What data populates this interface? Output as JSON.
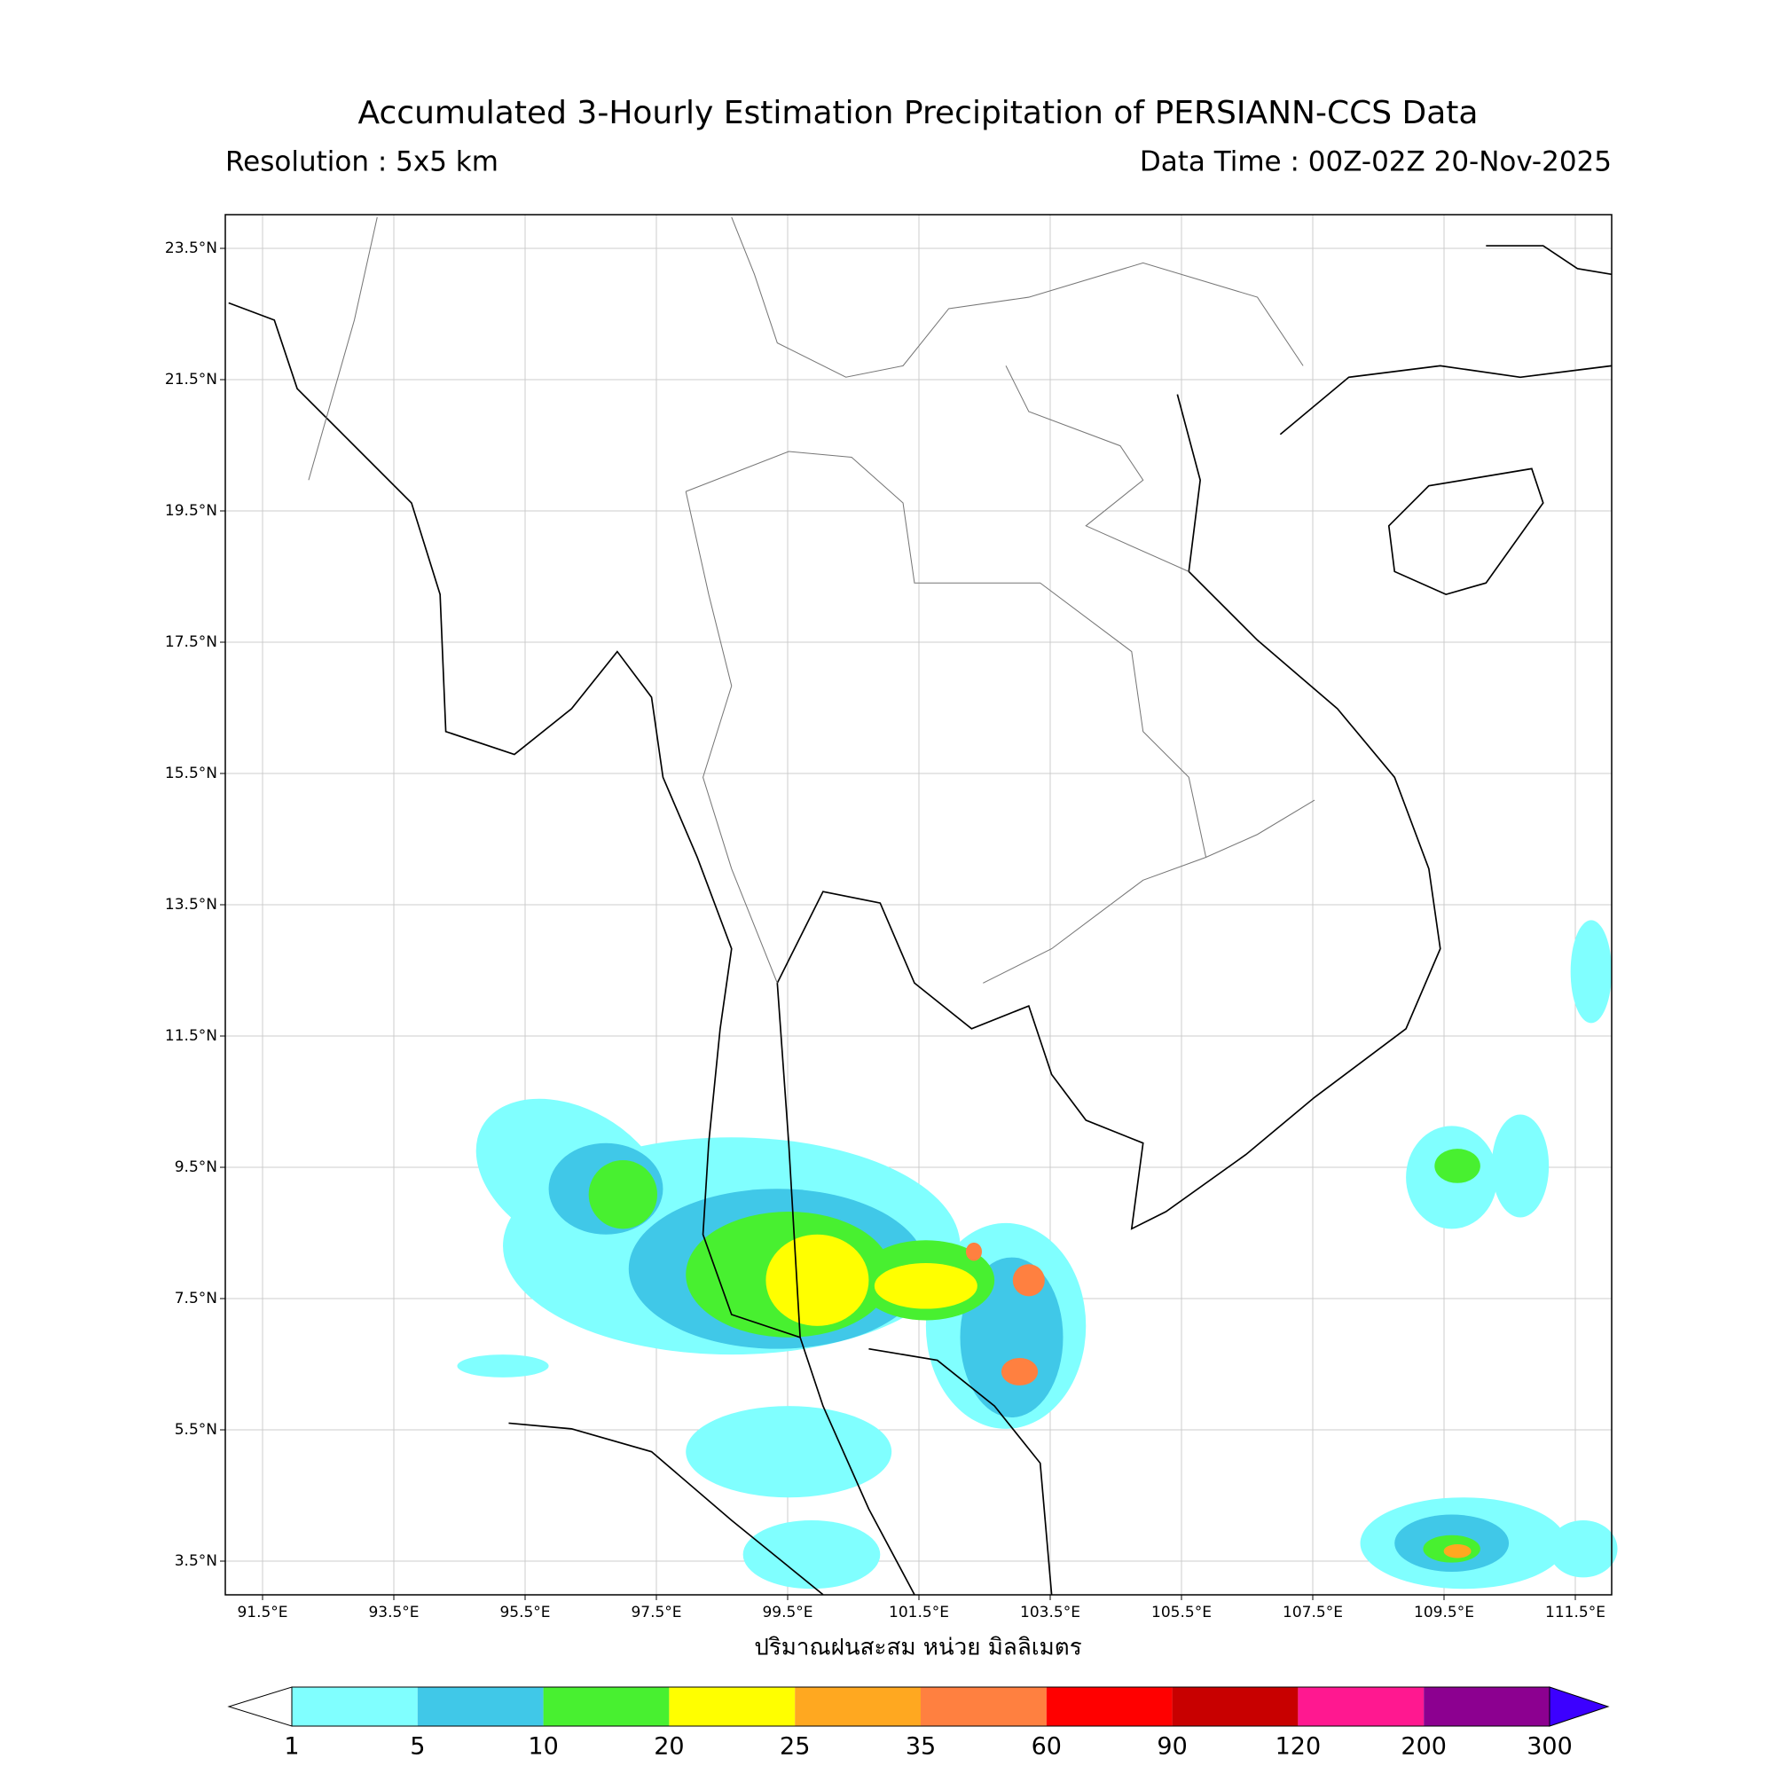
{
  "header": {
    "title": "Accumulated 3-Hourly Estimation Precipitation of PERSIANN-CCS Data",
    "resolution": "Resolution : 5x5 km",
    "data_time": "Data Time : 00Z-02Z 20-Nov-2025"
  },
  "map": {
    "lat_ticks": [
      "23.5°N",
      "21.5°N",
      "19.5°N",
      "17.5°N",
      "15.5°N",
      "13.5°N",
      "11.5°N",
      "9.5°N",
      "7.5°N",
      "5.5°N",
      "3.5°N"
    ],
    "lon_ticks": [
      "91.5°E",
      "93.5°E",
      "95.5°E",
      "97.5°E",
      "99.5°E",
      "101.5°E",
      "103.5°E",
      "105.5°E",
      "107.5°E",
      "109.5°E",
      "111.5°E"
    ],
    "xlabel": "ปริมาณฝนสะสม หน่วย มิลลิเมตร"
  },
  "colorbar": {
    "labels": [
      "1",
      "5",
      "10",
      "20",
      "25",
      "35",
      "60",
      "90",
      "120",
      "200",
      "300"
    ],
    "colors": [
      "#80ffff",
      "#40c8e8",
      "#48f030",
      "#ffff00",
      "#ffa820",
      "#ff8040",
      "#ff0000",
      "#c80000",
      "#ff1890",
      "#8c0090"
    ],
    "under_color": "#ffffff",
    "over_color": "#3c00ff"
  }
}
